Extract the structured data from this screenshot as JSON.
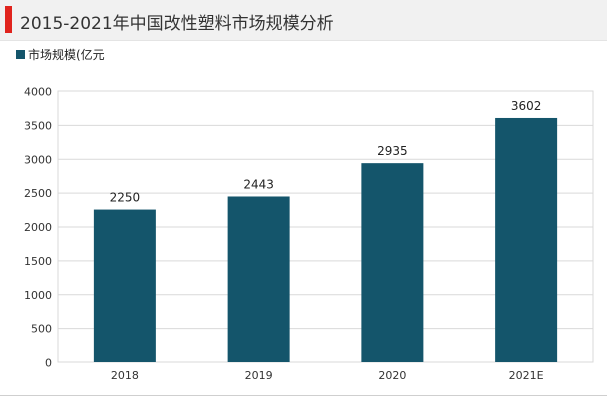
{
  "title": "2015-2021年中国改性塑料市场规模分析",
  "legend": {
    "label": "市场规模(亿元"
  },
  "colors": {
    "accent": "#e0231d",
    "bar": "#14556b",
    "grid": "#d9d9d9"
  },
  "chart_data": {
    "type": "bar",
    "title": "2015-2021年中国改性塑料市场规模分析",
    "categories": [
      "2018",
      "2019",
      "2020",
      "2021E"
    ],
    "series": [
      {
        "name": "市场规模(亿元",
        "values": [
          2250,
          2443,
          2935,
          3602
        ]
      }
    ],
    "ylim": [
      0,
      4000
    ],
    "yticks": [
      0,
      500,
      1000,
      1500,
      2000,
      2500,
      3000,
      3500,
      4000
    ],
    "grid": true,
    "data_labels": true,
    "legend_position": "top-left"
  }
}
